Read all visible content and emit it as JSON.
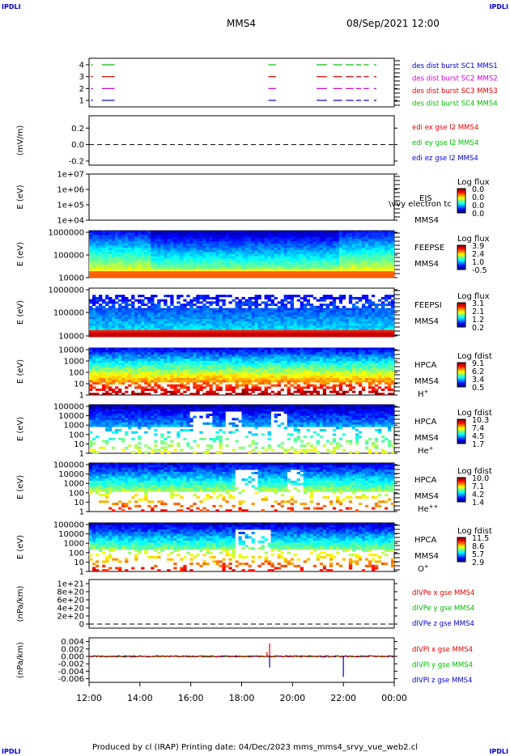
{
  "corners": {
    "tl": "IPDLI",
    "tr": "IPDLI",
    "bl": "IPDLI",
    "br": "IPDLI"
  },
  "header": {
    "spacecraft": "MMS4",
    "datetime": "08/Sep/2021 12:00"
  },
  "footer": {
    "text": "Produced by cl (IRAP)   Printing date: 04/Dec/2023   mms_mms4_srvy_vue_web2.cl"
  },
  "colors": {
    "mms1": "#0000cc",
    "mms2": "#cc00cc",
    "mms3": "#dd0000",
    "mms4": "#00bb00"
  },
  "chart_data": [
    {
      "type": "line",
      "id": "panel-burst",
      "yticks": [
        "1",
        "2",
        "3",
        "4"
      ],
      "series": [
        {
          "name": "des dist burst SC1 MMS1",
          "color": "#0000cc",
          "level": 1
        },
        {
          "name": "des dist burst SC2 MMS2",
          "color": "#cc00cc",
          "level": 2
        },
        {
          "name": "des dist burst SC3 MMS3",
          "color": "#dd0000",
          "level": 3
        },
        {
          "name": "des dist burst SC4 MMS4",
          "color": "#00bb00",
          "level": 4
        }
      ],
      "burst_intervals": [
        [
          12.5,
          13.0
        ],
        [
          19.05,
          19.35
        ],
        [
          20.95,
          21.35
        ],
        [
          21.6,
          21.95
        ],
        [
          22.1,
          22.4
        ],
        [
          22.5,
          22.7
        ],
        [
          22.8,
          23.0
        ],
        [
          23.2,
          23.3
        ]
      ]
    },
    {
      "type": "line",
      "id": "panel-edi",
      "ylabel": "(mV/m)",
      "ylim": [
        -0.25,
        0.35
      ],
      "yticks": [
        "0.2",
        "0.0",
        "-0.2"
      ],
      "legend": [
        {
          "label": "edi ex gse l2 MMS4",
          "color": "#dd0000"
        },
        {
          "label": "edi ey gse l2 MMS4",
          "color": "#00bb00"
        },
        {
          "label": "edi ez gse l2 MMS4",
          "color": "#0000cc"
        }
      ]
    },
    {
      "type": "heatmap",
      "id": "panel-eis",
      "ylabel": "E (eV)",
      "yticks": [
        "1e+07",
        "1e+06",
        "1e+05",
        "1e+04"
      ],
      "labels": [
        "EIS",
        "MMS4"
      ],
      "overlay": "\\vvy electron tc",
      "cbar_title": "Log flux",
      "cbar_ticks": [
        "0.0",
        "0.0",
        "0.0",
        "0.0"
      ]
    },
    {
      "type": "heatmap",
      "id": "panel-feepse",
      "ylabel": "E (eV)",
      "yticks": [
        "1000000",
        "100000",
        "10000"
      ],
      "labels": [
        "FEEPSE",
        "MMS4"
      ],
      "cbar_title": "Log flux",
      "cbar_ticks": [
        "3.9",
        "2.4",
        "1.0",
        "-0.5"
      ]
    },
    {
      "type": "heatmap",
      "id": "panel-feepsi",
      "ylabel": "E (eV)",
      "yticks": [
        "1000000",
        "100000",
        "10000"
      ],
      "labels": [
        "FEEPSI",
        "MMS4"
      ],
      "cbar_title": "Log flux",
      "cbar_ticks": [
        "3.1",
        "2.1",
        "1.2",
        "0.2"
      ]
    },
    {
      "type": "heatmap",
      "id": "panel-hpca-h",
      "ylabel": "E (eV)",
      "yticks": [
        "10000",
        "1000",
        "100",
        "10",
        "1"
      ],
      "labels": [
        "HPCA",
        "MMS4"
      ],
      "species": "H",
      "charge": "+",
      "cbar_title": "Log fdist",
      "cbar_ticks": [
        "9.1",
        "6.2",
        "3.4",
        "0.5"
      ]
    },
    {
      "type": "heatmap",
      "id": "panel-hpca-he",
      "ylabel": "E (eV)",
      "yticks": [
        "100000",
        "10000",
        "1000",
        "100",
        "10",
        "1"
      ],
      "labels": [
        "HPCA",
        "MMS4"
      ],
      "species": "He",
      "charge": "+",
      "cbar_title": "Log fdist",
      "cbar_ticks": [
        "10.3",
        "7.4",
        "4.5",
        "1.7"
      ]
    },
    {
      "type": "heatmap",
      "id": "panel-hpca-he2",
      "ylabel": "E (eV)",
      "yticks": [
        "100000",
        "10000",
        "1000",
        "100",
        "10",
        "1"
      ],
      "labels": [
        "HPCA",
        "MMS4"
      ],
      "species": "He",
      "charge": "++",
      "cbar_title": "Log fdist",
      "cbar_ticks": [
        "10.0",
        "7.1",
        "4.2",
        "1.4"
      ]
    },
    {
      "type": "heatmap",
      "id": "panel-hpca-o",
      "ylabel": "E (eV)",
      "yticks": [
        "100000",
        "10000",
        "1000",
        "100",
        "10",
        "1"
      ],
      "labels": [
        "HPCA",
        "MMS4"
      ],
      "species": "O",
      "charge": "+",
      "cbar_title": "Log fdist",
      "cbar_ticks": [
        "11.5",
        "8.6",
        "5.7",
        "2.9"
      ]
    },
    {
      "type": "line",
      "id": "panel-divpe",
      "ylabel": "(nPa/km)",
      "ylim": [
        0,
        1e+21
      ],
      "yticks": [
        "1e+21",
        "8e+20",
        "6e+20",
        "4e+20",
        "2e+20",
        "0"
      ],
      "legend": [
        {
          "label": "dIVPe x gse MMS4",
          "color": "#dd0000"
        },
        {
          "label": "dIVPe y gse MMS4",
          "color": "#00bb00"
        },
        {
          "label": "dIVPe z gse MMS4",
          "color": "#0000cc"
        }
      ]
    },
    {
      "type": "line",
      "id": "panel-divpi",
      "ylabel": "(nPa/km)",
      "ylim": [
        -0.007,
        0.005
      ],
      "yticks": [
        "0.004",
        "0.002",
        "0.000",
        "-0.002",
        "-0.004",
        "-0.006"
      ],
      "legend": [
        {
          "label": "dIVPI x gse MMS4",
          "color": "#dd0000"
        },
        {
          "label": "dIVPI y gse MMS4",
          "color": "#00bb00"
        },
        {
          "label": "dIVPI z gse MMS4",
          "color": "#0000cc"
        }
      ],
      "spikes": [
        {
          "t": 19.0,
          "value": 0.0012,
          "color": "#dd0000"
        },
        {
          "t": 19.1,
          "value": 0.0035,
          "color": "#dd0000"
        },
        {
          "t": 19.1,
          "value": -0.003,
          "color": "#0000cc"
        },
        {
          "t": 22.0,
          "value": -0.0055,
          "color": "#0000cc"
        }
      ]
    }
  ],
  "xaxis": {
    "ticks": [
      "12:00",
      "14:00",
      "16:00",
      "18:00",
      "20:00",
      "22:00",
      "00:00"
    ],
    "xlim": [
      12,
      24
    ]
  }
}
